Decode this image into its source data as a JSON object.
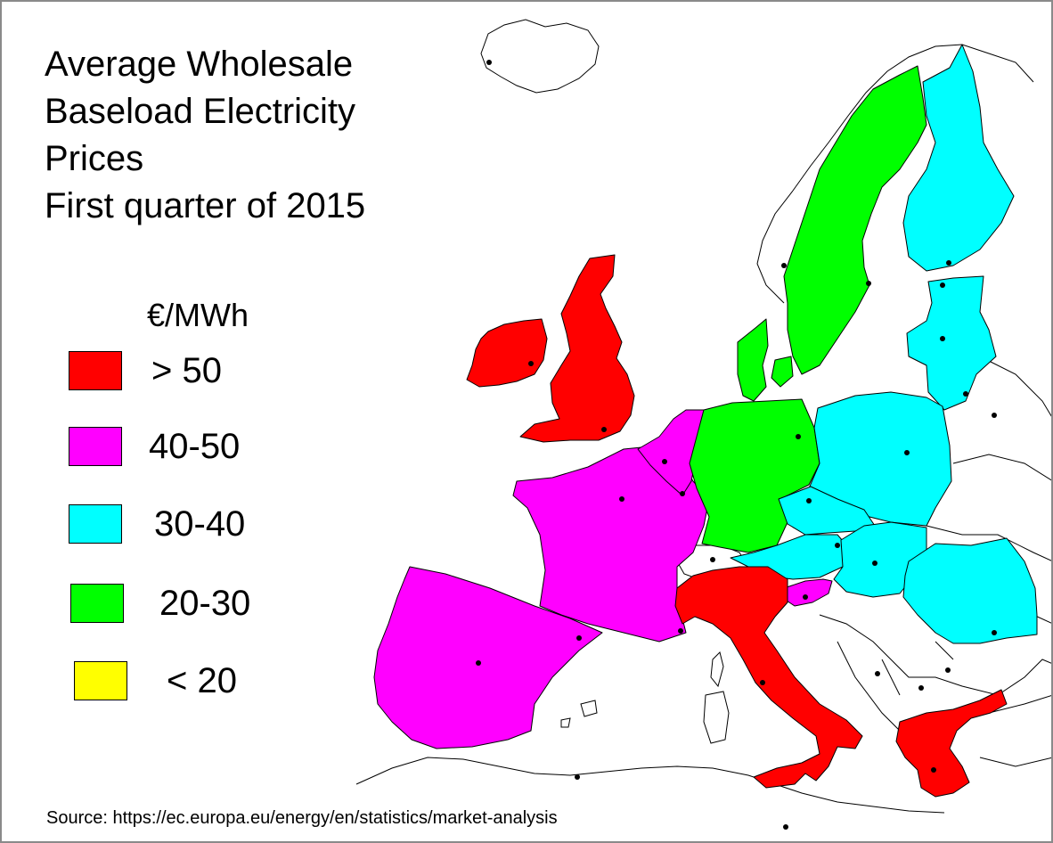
{
  "title_lines": [
    "Average Wholesale",
    "Baseload Electricity",
    "Prices",
    "First quarter of 2015"
  ],
  "legend": {
    "unit": "€/MWh",
    "items": [
      {
        "label": "> 50",
        "color": "#ff0000"
      },
      {
        "label": "40-50",
        "color": "#ff00ff"
      },
      {
        "label": "30-40",
        "color": "#00ffff"
      },
      {
        "label": "20-30",
        "color": "#00ff00"
      },
      {
        "label": "< 20",
        "color": "#ffff00"
      }
    ]
  },
  "source": "Source: https://ec.europa.eu/energy/en/statistics/market-analysis",
  "countries": [
    {
      "id": "united-kingdom",
      "category": "> 50"
    },
    {
      "id": "ireland",
      "category": "> 50"
    },
    {
      "id": "italy",
      "category": "> 50"
    },
    {
      "id": "greece",
      "category": "> 50"
    },
    {
      "id": "france",
      "category": "40-50"
    },
    {
      "id": "spain-portugal",
      "category": "40-50"
    },
    {
      "id": "benelux",
      "category": "40-50"
    },
    {
      "id": "slovenia",
      "category": "40-50"
    },
    {
      "id": "finland",
      "category": "30-40"
    },
    {
      "id": "baltics",
      "category": "30-40"
    },
    {
      "id": "poland",
      "category": "30-40"
    },
    {
      "id": "czechia",
      "category": "30-40"
    },
    {
      "id": "austria",
      "category": "30-40"
    },
    {
      "id": "slovakia-hungary",
      "category": "30-40"
    },
    {
      "id": "romania",
      "category": "30-40"
    },
    {
      "id": "sweden-norway",
      "category": "20-30"
    },
    {
      "id": "denmark",
      "category": "20-30"
    },
    {
      "id": "germany",
      "category": "20-30"
    }
  ]
}
